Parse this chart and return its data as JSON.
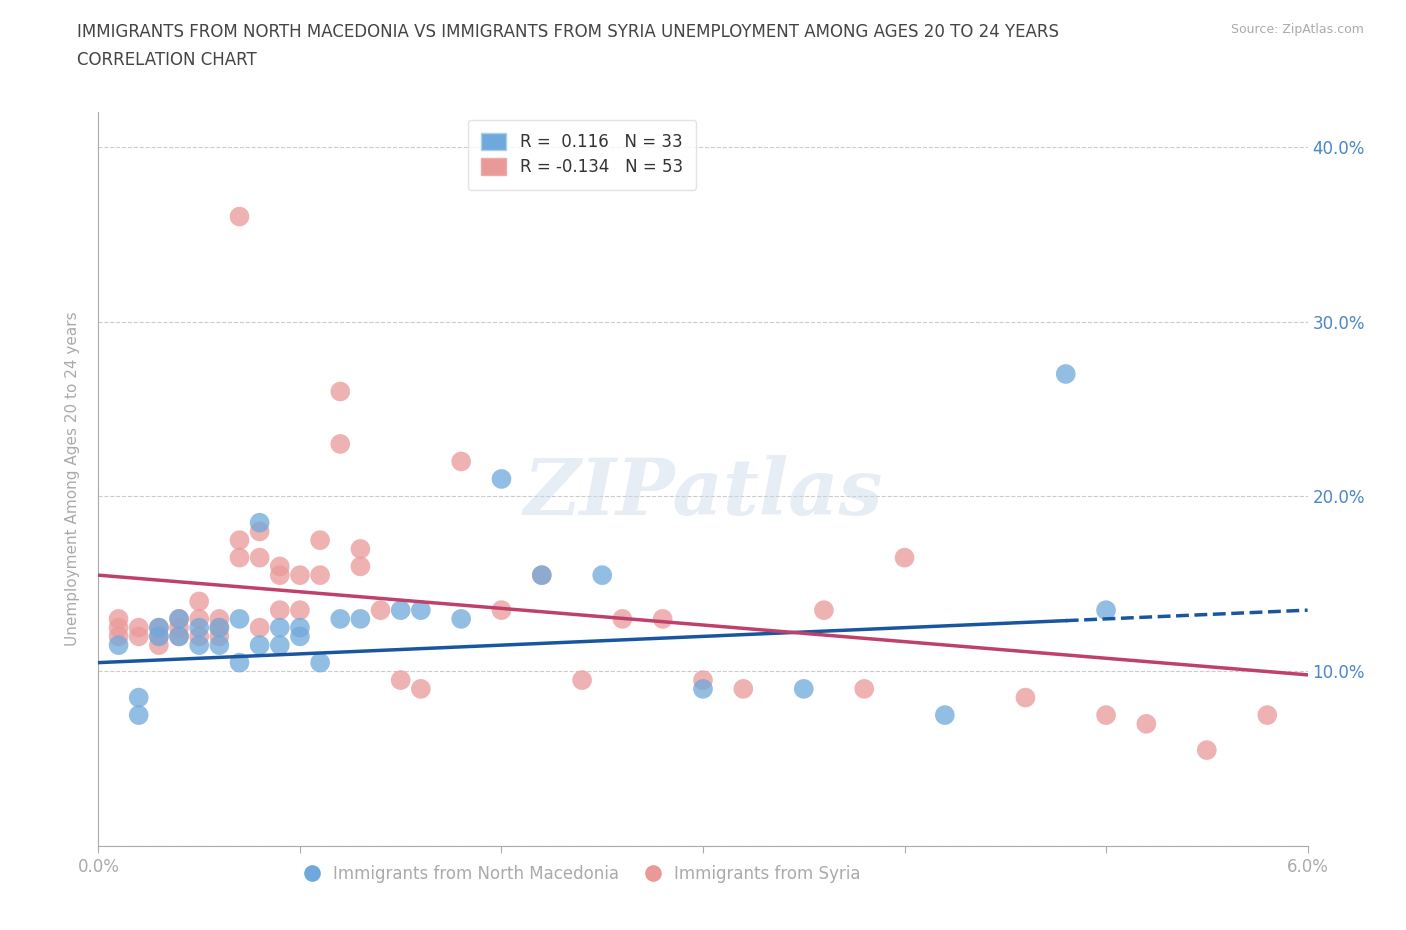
{
  "title_line1": "IMMIGRANTS FROM NORTH MACEDONIA VS IMMIGRANTS FROM SYRIA UNEMPLOYMENT AMONG AGES 20 TO 24 YEARS",
  "title_line2": "CORRELATION CHART",
  "source": "Source: ZipAtlas.com",
  "watermark": "ZIPatlas",
  "ylabel": "Unemployment Among Ages 20 to 24 years",
  "xlim": [
    0.0,
    0.06
  ],
  "ylim": [
    0.0,
    0.42
  ],
  "xticks": [
    0.0,
    0.01,
    0.02,
    0.03,
    0.04,
    0.05,
    0.06
  ],
  "xticklabels": [
    "0.0%",
    "",
    "",
    "",
    "",
    "",
    "6.0%"
  ],
  "yticks": [
    0.0,
    0.1,
    0.2,
    0.3,
    0.4
  ],
  "yticklabels_right": [
    "",
    "10.0%",
    "20.0%",
    "30.0%",
    "40.0%"
  ],
  "R_blue": 0.116,
  "N_blue": 33,
  "R_pink": -0.134,
  "N_pink": 53,
  "blue_color": "#6fa8dc",
  "pink_color": "#ea9999",
  "trendline_blue_color": "#1a56a0",
  "trendline_pink_color": "#c0406c",
  "blue_scatter_x": [
    0.001,
    0.002,
    0.002,
    0.003,
    0.003,
    0.004,
    0.004,
    0.005,
    0.005,
    0.006,
    0.006,
    0.007,
    0.007,
    0.008,
    0.008,
    0.009,
    0.009,
    0.01,
    0.01,
    0.011,
    0.012,
    0.013,
    0.015,
    0.016,
    0.018,
    0.02,
    0.022,
    0.025,
    0.03,
    0.035,
    0.042,
    0.048,
    0.05
  ],
  "blue_scatter_y": [
    0.115,
    0.085,
    0.075,
    0.12,
    0.125,
    0.12,
    0.13,
    0.115,
    0.125,
    0.115,
    0.125,
    0.105,
    0.13,
    0.185,
    0.115,
    0.115,
    0.125,
    0.125,
    0.12,
    0.105,
    0.13,
    0.13,
    0.135,
    0.135,
    0.13,
    0.21,
    0.155,
    0.155,
    0.09,
    0.09,
    0.075,
    0.27,
    0.135
  ],
  "pink_scatter_x": [
    0.001,
    0.001,
    0.001,
    0.002,
    0.002,
    0.003,
    0.003,
    0.003,
    0.004,
    0.004,
    0.004,
    0.005,
    0.005,
    0.005,
    0.006,
    0.006,
    0.006,
    0.007,
    0.007,
    0.007,
    0.008,
    0.008,
    0.008,
    0.009,
    0.009,
    0.009,
    0.01,
    0.01,
    0.011,
    0.011,
    0.012,
    0.012,
    0.013,
    0.013,
    0.014,
    0.015,
    0.016,
    0.018,
    0.02,
    0.022,
    0.024,
    0.026,
    0.028,
    0.03,
    0.032,
    0.036,
    0.038,
    0.04,
    0.046,
    0.05,
    0.052,
    0.055,
    0.058
  ],
  "pink_scatter_y": [
    0.12,
    0.125,
    0.13,
    0.12,
    0.125,
    0.12,
    0.125,
    0.115,
    0.12,
    0.13,
    0.125,
    0.12,
    0.14,
    0.13,
    0.13,
    0.12,
    0.125,
    0.175,
    0.165,
    0.36,
    0.165,
    0.18,
    0.125,
    0.155,
    0.16,
    0.135,
    0.155,
    0.135,
    0.175,
    0.155,
    0.26,
    0.23,
    0.17,
    0.16,
    0.135,
    0.095,
    0.09,
    0.22,
    0.135,
    0.155,
    0.095,
    0.13,
    0.13,
    0.095,
    0.09,
    0.135,
    0.09,
    0.165,
    0.085,
    0.075,
    0.07,
    0.055,
    0.075
  ],
  "grid_color": "#cccccc",
  "background_color": "#ffffff",
  "title_color": "#444444",
  "axis_color": "#aaaaaa",
  "right_axis_color": "#4a86c8",
  "trendline_blue_y0": 0.105,
  "trendline_blue_y1": 0.135,
  "trendline_pink_y0": 0.155,
  "trendline_pink_y1": 0.098
}
